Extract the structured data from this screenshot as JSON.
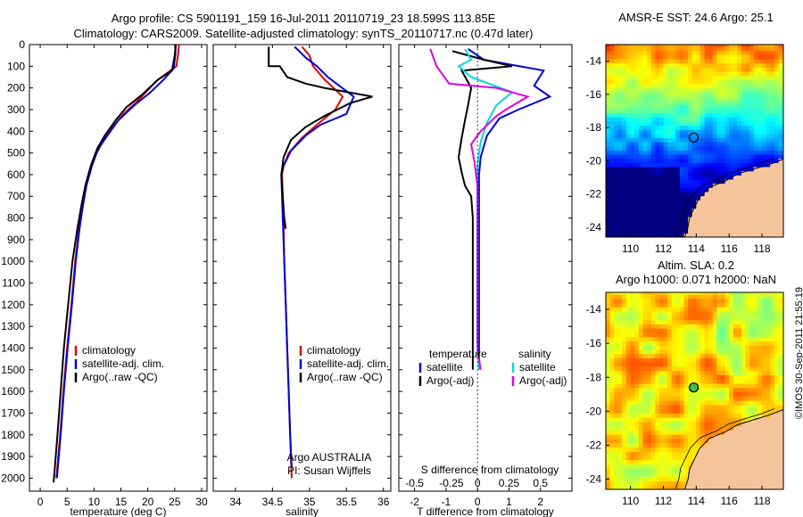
{
  "header": {
    "title_line1": "Argo profile: CS 5901191_159 16-Jul-2011 20110719_23 18.599S 113.85E",
    "title_line2": "Climatology: CARS2009. Satellite-adjusted climatology: synTS_20110717.nc (0.47d later)"
  },
  "credit": "©IMOS 30-Sep-2011 21:55:19",
  "colors": {
    "climatology": "#e00000",
    "satellite": "#0000e0",
    "argo": "#000000",
    "salinity_satellite": "#00d8d8",
    "salinity_argo": "#e000e0"
  },
  "chart_data": [
    {
      "id": "temperature",
      "type": "line",
      "xlabel": "temperature (deg C)",
      "ylabel": "",
      "xlim": [
        -2,
        31
      ],
      "ylim": [
        2060,
        0
      ],
      "xticks": [
        0,
        5,
        10,
        15,
        20,
        25,
        30
      ],
      "yticks": [
        0,
        100,
        200,
        300,
        400,
        500,
        600,
        700,
        800,
        900,
        1000,
        1100,
        1200,
        1300,
        1400,
        1500,
        1600,
        1700,
        1800,
        1900,
        2000
      ],
      "legend": [
        "climatology",
        "satellite-adj. clim.",
        "Argo(..raw -QC)"
      ],
      "series": [
        {
          "name": "climatology",
          "color": "#e00000",
          "points": [
            [
              25.8,
              0
            ],
            [
              25.6,
              50
            ],
            [
              25.3,
              100
            ],
            [
              21.5,
              170
            ],
            [
              18.5,
              250
            ],
            [
              15.5,
              320
            ],
            [
              13.5,
              380
            ],
            [
              12,
              430
            ],
            [
              10.5,
              500
            ],
            [
              9.5,
              560
            ],
            [
              8.5,
              650
            ],
            [
              7.8,
              750
            ],
            [
              7.2,
              850
            ],
            [
              6.5,
              1000
            ],
            [
              5.8,
              1200
            ],
            [
              5,
              1400
            ],
            [
              4.3,
              1600
            ],
            [
              3.7,
              1800
            ],
            [
              3,
              2000
            ]
          ]
        },
        {
          "name": "satellite-adj. clim.",
          "color": "#0000e0",
          "points": [
            [
              25.2,
              0
            ],
            [
              25.1,
              50
            ],
            [
              24.8,
              110
            ],
            [
              23,
              160
            ],
            [
              20.5,
              220
            ],
            [
              17.5,
              280
            ],
            [
              14.5,
              350
            ],
            [
              12.5,
              420
            ],
            [
              10.8,
              480
            ],
            [
              9.6,
              560
            ],
            [
              8.6,
              650
            ],
            [
              7.9,
              750
            ],
            [
              7.3,
              850
            ],
            [
              6.6,
              1000
            ],
            [
              5.9,
              1200
            ],
            [
              5.1,
              1400
            ],
            [
              4.4,
              1600
            ],
            [
              3.8,
              1800
            ],
            [
              3.1,
              2000
            ]
          ]
        },
        {
          "name": "Argo(..raw -QC)",
          "color": "#000000",
          "points": [
            [
              25.2,
              0
            ],
            [
              25,
              50
            ],
            [
              24.5,
              120
            ],
            [
              22,
              160
            ],
            [
              19,
              230
            ],
            [
              16,
              290
            ],
            [
              14,
              350
            ],
            [
              12,
              420
            ],
            [
              10.6,
              480
            ],
            [
              9.4,
              560
            ],
            [
              8.4,
              650
            ],
            [
              7.6,
              750
            ],
            [
              6.9,
              850
            ],
            [
              6,
              1000
            ],
            [
              5.2,
              1200
            ],
            [
              4.4,
              1400
            ],
            [
              3.8,
              1600
            ],
            [
              3.2,
              1800
            ],
            [
              2.5,
              2020
            ]
          ]
        }
      ]
    },
    {
      "id": "salinity",
      "type": "line",
      "xlabel": "salinity",
      "ylabel": "",
      "xlim": [
        33.7,
        36.1
      ],
      "ylim": [
        2060,
        0
      ],
      "xticks": [
        34,
        34.5,
        35,
        35.5,
        36
      ],
      "legend": [
        "climatology",
        "satellite-adj. clim.",
        "Argo(..raw -QC)"
      ],
      "annotation": [
        "Argo AUSTRALIA",
        "PI: Susan Wijffels"
      ],
      "series": [
        {
          "name": "climatology",
          "color": "#e00000",
          "points": [
            [
              34.9,
              10
            ],
            [
              35,
              50
            ],
            [
              35.05,
              100
            ],
            [
              35.2,
              160
            ],
            [
              35.45,
              240
            ],
            [
              35.35,
              300
            ],
            [
              35.1,
              370
            ],
            [
              34.9,
              430
            ],
            [
              34.72,
              500
            ],
            [
              34.65,
              560
            ],
            [
              34.63,
              600
            ],
            [
              34.64,
              700
            ],
            [
              34.65,
              800
            ],
            [
              34.66,
              1000
            ],
            [
              34.68,
              1200
            ],
            [
              34.7,
              1400
            ],
            [
              34.72,
              1600
            ],
            [
              34.74,
              1800
            ],
            [
              34.76,
              2000
            ]
          ]
        },
        {
          "name": "satellite-adj. clim.",
          "color": "#0000e0",
          "points": [
            [
              34.8,
              10
            ],
            [
              34.95,
              60
            ],
            [
              35.1,
              100
            ],
            [
              35.25,
              150
            ],
            [
              35.6,
              240
            ],
            [
              35.5,
              320
            ],
            [
              35.15,
              370
            ],
            [
              34.95,
              420
            ],
            [
              34.75,
              490
            ],
            [
              34.65,
              560
            ],
            [
              34.62,
              600
            ],
            [
              34.63,
              700
            ],
            [
              34.64,
              800
            ],
            [
              34.66,
              1000
            ],
            [
              34.68,
              1200
            ],
            [
              34.7,
              1400
            ],
            [
              34.72,
              1600
            ],
            [
              34.74,
              1800
            ],
            [
              34.76,
              1950
            ]
          ]
        },
        {
          "name": "Argo(..raw -QC)",
          "color": "#000000",
          "points": [
            [
              34.45,
              10
            ],
            [
              34.45,
              100
            ],
            [
              34.6,
              100
            ],
            [
              34.7,
              150
            ],
            [
              34.95,
              180
            ],
            [
              35.2,
              200
            ],
            [
              35.85,
              240
            ],
            [
              35.55,
              270
            ],
            [
              35.2,
              330
            ],
            [
              34.95,
              380
            ],
            [
              34.75,
              440
            ],
            [
              34.65,
              520
            ],
            [
              34.62,
              600
            ],
            [
              34.64,
              700
            ],
            [
              34.66,
              800
            ],
            [
              34.68,
              850
            ]
          ]
        }
      ]
    },
    {
      "id": "differences",
      "type": "line",
      "xlabel": "T difference from climatology",
      "xlabel_top": "S difference from climatology",
      "ylabel": "",
      "xlim": [
        -2.5,
        3
      ],
      "ylim": [
        2060,
        0
      ],
      "xticks_T": [
        -2,
        -1,
        0,
        1,
        2
      ],
      "xticks_S": [
        "-0.5",
        "-0.25",
        "0",
        "0.25",
        "0.5"
      ],
      "xticks_S_values": [
        -2,
        -1,
        0,
        1,
        2
      ],
      "legend_groups": [
        {
          "title": "temperature",
          "items": [
            "satellite",
            "Argo(-adj)"
          ]
        },
        {
          "title": "salinity",
          "items": [
            "satellite",
            "Argo(-adj)"
          ]
        }
      ],
      "series": [
        {
          "name": "satellite",
          "group": "temperature",
          "color": "#0000e0",
          "points": [
            [
              -0.3,
              20
            ],
            [
              0.2,
              70
            ],
            [
              2.1,
              120
            ],
            [
              1.8,
              190
            ],
            [
              2.3,
              240
            ],
            [
              1.3,
              300
            ],
            [
              0.7,
              340
            ],
            [
              0.3,
              420
            ],
            [
              0.1,
              520
            ],
            [
              0.05,
              600
            ],
            [
              0.05,
              800
            ],
            [
              0.05,
              1000
            ],
            [
              0.05,
              1200
            ],
            [
              0.05,
              1400
            ],
            [
              0.05,
              1500
            ]
          ]
        },
        {
          "name": "Argo(-adj)",
          "group": "temperature",
          "color": "#000000",
          "points": [
            [
              -0.8,
              30
            ],
            [
              0.2,
              70
            ],
            [
              1.1,
              100
            ],
            [
              -0.5,
              120
            ],
            [
              -0.2,
              200
            ],
            [
              -0.3,
              280
            ],
            [
              -0.4,
              350
            ],
            [
              -0.5,
              430
            ],
            [
              -0.6,
              520
            ],
            [
              -0.5,
              590
            ],
            [
              -0.4,
              650
            ],
            [
              -0.2,
              700
            ],
            [
              -0.15,
              800
            ],
            [
              -0.15,
              1000
            ],
            [
              -0.15,
              1200
            ],
            [
              -0.15,
              1400
            ],
            [
              -0.15,
              1500
            ]
          ]
        },
        {
          "name": "satellite",
          "group": "salinity",
          "color": "#00d8d8",
          "points": [
            [
              -0.4,
              20
            ],
            [
              -0.2,
              70
            ],
            [
              -0.6,
              100
            ],
            [
              -0.2,
              150
            ],
            [
              1.1,
              220
            ],
            [
              0.6,
              280
            ],
            [
              0.3,
              360
            ],
            [
              0.1,
              450
            ],
            [
              0,
              550
            ],
            [
              0,
              650
            ],
            [
              0,
              800
            ],
            [
              0,
              1000
            ],
            [
              0,
              1200
            ],
            [
              0,
              1400
            ],
            [
              0.05,
              1500
            ]
          ]
        },
        {
          "name": "Argo(-adj)",
          "group": "salinity",
          "color": "#e000e0",
          "points": [
            [
              -1.5,
              20
            ],
            [
              -1.3,
              100
            ],
            [
              -0.9,
              180
            ],
            [
              0.6,
              200
            ],
            [
              1.6,
              240
            ],
            [
              0.9,
              300
            ],
            [
              0.6,
              330
            ],
            [
              0.1,
              400
            ],
            [
              -0.2,
              460
            ],
            [
              -0.1,
              540
            ],
            [
              0,
              650
            ],
            [
              0,
              800
            ],
            [
              0,
              1000
            ],
            [
              0,
              1200
            ],
            [
              0,
              1400
            ],
            [
              0.1,
              1500
            ]
          ]
        }
      ]
    },
    {
      "id": "sst_map",
      "type": "heatmap",
      "title": "AMSR-E SST: 24.6 Argo: 25.1",
      "xlim": [
        108.5,
        119.3
      ],
      "ylim": [
        -24.6,
        -13
      ],
      "xticks": [
        110,
        112,
        114,
        116,
        118
      ],
      "yticks": [
        -14,
        -16,
        -18,
        -20,
        -22,
        -24
      ],
      "argo_position": [
        113.85,
        -18.6
      ]
    },
    {
      "id": "sla_map",
      "type": "heatmap",
      "title": "Altim. SLA: 0.2",
      "subtitle": "Argo h1000: 0.071 h2000: NaN",
      "xlim": [
        108.5,
        119.3
      ],
      "ylim": [
        -24.6,
        -13
      ],
      "xticks": [
        110,
        112,
        114,
        116,
        118
      ],
      "yticks": [
        -14,
        -16,
        -18,
        -20,
        -22,
        -24
      ],
      "argo_position": [
        113.85,
        -18.6
      ]
    }
  ]
}
